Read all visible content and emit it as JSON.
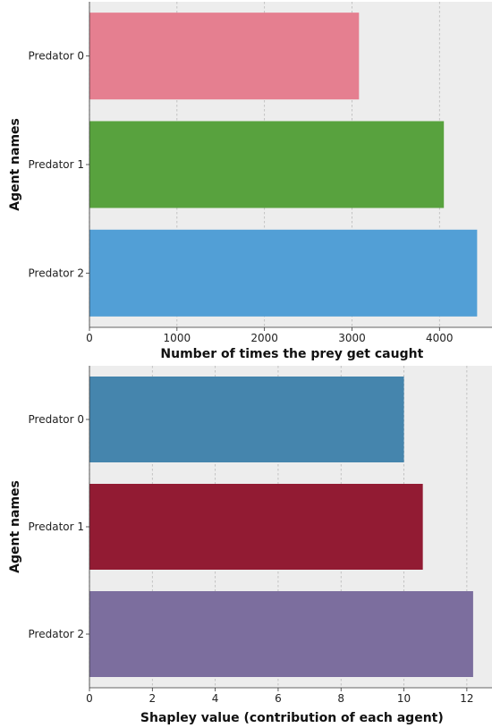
{
  "chart_data": [
    {
      "type": "bar",
      "orientation": "horizontal",
      "categories": [
        "Predator 0",
        "Predator 1",
        "Predator 2"
      ],
      "values": [
        3080,
        4050,
        4430
      ],
      "colors": [
        "#e57f90",
        "#58a23e",
        "#529fd6"
      ],
      "title": "",
      "xlabel": "Number of times the prey get caught",
      "ylabel": "Agent names",
      "xlim": [
        0,
        4600
      ],
      "xticks": [
        0,
        1000,
        2000,
        3000,
        4000
      ],
      "grid": true
    },
    {
      "type": "bar",
      "orientation": "horizontal",
      "categories": [
        "Predator 0",
        "Predator 1",
        "Predator 2"
      ],
      "values": [
        10.0,
        10.6,
        12.2
      ],
      "colors": [
        "#4585ad",
        "#921b33",
        "#7c6e9e"
      ],
      "title": "",
      "xlabel": "Shapley value (contribution of each agent)",
      "ylabel": "Agent names",
      "xlim": [
        0,
        12.8
      ],
      "xticks": [
        0,
        2,
        4,
        6,
        8,
        10,
        12
      ],
      "grid": true
    }
  ]
}
